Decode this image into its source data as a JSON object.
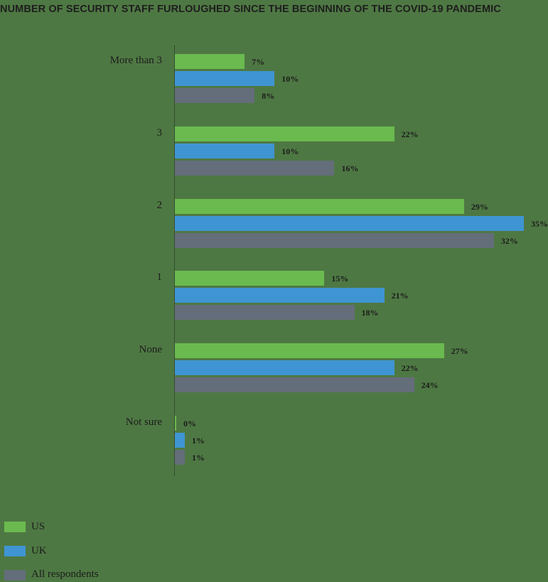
{
  "chart_data": {
    "type": "bar",
    "orientation": "horizontal",
    "title": "NUMBER OF SECURITY STAFF FURLOUGHED SINCE THE BEGINNING OF THE COVID-19 PANDEMIC",
    "categories": [
      "More than 3",
      "3",
      "2",
      "1",
      "None",
      "Not sure"
    ],
    "series": [
      {
        "name": "US",
        "color": "#6aba4f",
        "values": [
          7,
          22,
          29,
          15,
          27,
          0
        ]
      },
      {
        "name": "UK",
        "color": "#3f95d3",
        "values": [
          10,
          10,
          35,
          21,
          22,
          1
        ]
      },
      {
        "name": "All respondents",
        "color": "#646d7a",
        "values": [
          8,
          16,
          32,
          18,
          24,
          1
        ]
      }
    ],
    "value_labels": [
      [
        "7%",
        "10%",
        "8%"
      ],
      [
        "22%",
        "10%",
        "16%"
      ],
      [
        "29%",
        "35%",
        "32%"
      ],
      [
        "15%",
        "21%",
        "18%"
      ],
      [
        "27%",
        "22%",
        "24%"
      ],
      [
        "0%",
        "1%",
        "1%"
      ]
    ],
    "xlabel": "",
    "ylabel": "",
    "xlim": [
      0,
      35
    ],
    "grid": false,
    "legend_position": "bottom-left"
  },
  "legend": [
    "US",
    "UK",
    "All respondents"
  ]
}
